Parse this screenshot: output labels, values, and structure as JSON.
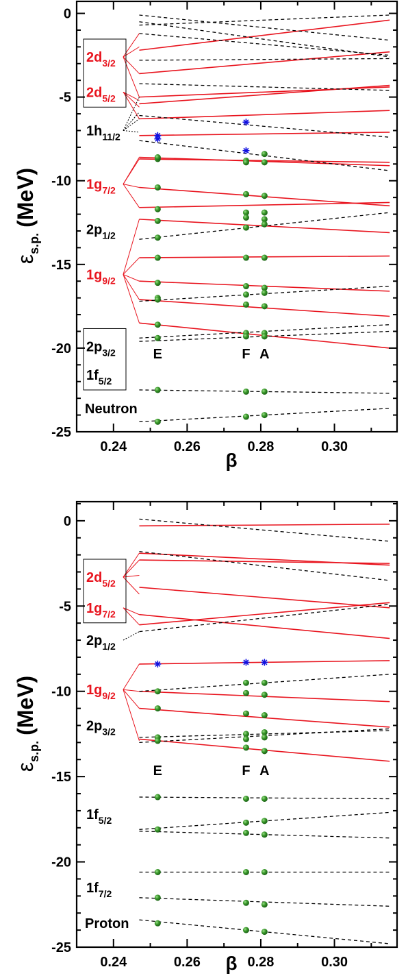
{
  "chart_data": [
    {
      "type": "line",
      "panel": "neutron",
      "title": "",
      "xlabel": "β",
      "ylabel_main": "ε",
      "ylabel_sub": "s.p.",
      "ylabel_unit": "(MeV)",
      "xlim": [
        0.23,
        0.317
      ],
      "ylim": [
        -25,
        0.8
      ],
      "x_ticks": [
        0.24,
        0.26,
        0.28,
        0.3
      ],
      "x_tick_labels": [
        "0.24",
        "0.26",
        "0.28",
        "0.30"
      ],
      "y_ticks": [
        0,
        -5,
        -10,
        -15,
        -20,
        -25
      ],
      "y_tick_labels": [
        "0",
        "-5",
        "-10",
        "-15",
        "-20",
        "-25"
      ],
      "nucleon_label": "Neutron",
      "point_labels": [
        {
          "text": "E",
          "x": 0.252
        },
        {
          "text": "F",
          "x": 0.276
        },
        {
          "text": "A",
          "x": 0.281
        }
      ],
      "point_label_y": -20.3,
      "x_start": 0.247,
      "x_end": 0.315,
      "label_groups": [
        {
          "main": "2d",
          "sub": "3/2",
          "color": "red",
          "boxed": true,
          "y": -2.6,
          "targets": [
            -1.2,
            -2.0,
            -3.6,
            -5.0
          ]
        },
        {
          "main": "2d",
          "sub": "5/2",
          "color": "red",
          "boxed": true,
          "y": -4.7,
          "targets": [
            -5.2,
            -5.6,
            -6.3
          ]
        },
        {
          "main": "1h",
          "sub": "11/2",
          "color": "black",
          "boxed": false,
          "y": -7.0,
          "targets": [
            -5.0,
            -5.9,
            -6.3,
            -7.1
          ]
        },
        {
          "main": "1g",
          "sub": "7/2",
          "color": "red",
          "boxed": false,
          "y": -10.2,
          "targets": [
            -8.7,
            -8.6,
            -10.4,
            -11.6
          ]
        },
        {
          "main": "2p",
          "sub": "1/2",
          "color": "black",
          "boxed": false,
          "y": -12.9,
          "targets": []
        },
        {
          "main": "1g",
          "sub": "9/2",
          "color": "red",
          "boxed": false,
          "y": -15.6,
          "targets": [
            -12.3,
            -14.6,
            -16.0,
            -17.1,
            -18.5
          ]
        },
        {
          "main": "2p",
          "sub": "3/2",
          "color": "black",
          "boxed": true,
          "y": -19.9,
          "targets": []
        },
        {
          "main": "1f",
          "sub": "5/2",
          "color": "black",
          "boxed": true,
          "y": -21.6,
          "targets": []
        }
      ],
      "series": [
        {
          "style": "solid",
          "color": "red",
          "y": [
            -2.2,
            -0.4
          ]
        },
        {
          "style": "solid",
          "color": "red",
          "y": [
            -3.6,
            -2.3
          ]
        },
        {
          "style": "solid",
          "color": "red",
          "y": [
            -5.0,
            -4.4
          ]
        },
        {
          "style": "solid",
          "color": "red",
          "y": [
            -5.4,
            -4.3
          ]
        },
        {
          "style": "solid",
          "color": "red",
          "y": [
            -6.3,
            -5.8
          ]
        },
        {
          "style": "solid",
          "color": "red",
          "y": [
            -7.3,
            -7.1
          ]
        },
        {
          "style": "solid",
          "color": "red",
          "y": [
            -8.6,
            -9.1
          ]
        },
        {
          "style": "solid",
          "color": "red",
          "y": [
            -8.7,
            -8.9
          ]
        },
        {
          "style": "solid",
          "color": "red",
          "y": [
            -10.4,
            -11.5
          ]
        },
        {
          "style": "solid",
          "color": "red",
          "y": [
            -11.6,
            -11.3
          ]
        },
        {
          "style": "solid",
          "color": "red",
          "y": [
            -12.3,
            -13.1
          ]
        },
        {
          "style": "solid",
          "color": "red",
          "y": [
            -14.6,
            -14.5
          ]
        },
        {
          "style": "solid",
          "color": "red",
          "y": [
            -16.0,
            -16.6
          ]
        },
        {
          "style": "solid",
          "color": "red",
          "y": [
            -17.1,
            -18.1
          ]
        },
        {
          "style": "solid",
          "color": "red",
          "y": [
            -18.5,
            -20.0
          ]
        },
        {
          "style": "dashed",
          "color": "black",
          "y": [
            -0.1,
            -1.6
          ]
        },
        {
          "style": "dashed",
          "color": "black",
          "y": [
            -0.5,
            -2.6
          ]
        },
        {
          "style": "dashed",
          "color": "black",
          "y": [
            -0.7,
            -0.1
          ]
        },
        {
          "style": "dashed",
          "color": "black",
          "y": [
            -1.2,
            -2.5
          ]
        },
        {
          "style": "dashed",
          "color": "black",
          "y": [
            -2.8,
            -2.7
          ]
        },
        {
          "style": "dashed",
          "color": "black",
          "y": [
            -4.2,
            -4.6
          ]
        },
        {
          "style": "dashed",
          "color": "black",
          "y": [
            -6.1,
            -7.4
          ]
        },
        {
          "style": "dashed",
          "color": "black",
          "y": [
            -7.6,
            -9.4
          ]
        },
        {
          "style": "dashed",
          "color": "black",
          "y": [
            -13.5,
            -11.9
          ]
        },
        {
          "style": "dashed",
          "color": "black",
          "y": [
            -17.2,
            -16.3
          ]
        },
        {
          "style": "dashed",
          "color": "black",
          "y": [
            -19.4,
            -18.6
          ]
        },
        {
          "style": "dashed",
          "color": "black",
          "y": [
            -19.6,
            -19.0
          ]
        },
        {
          "style": "dashed",
          "color": "black",
          "y": [
            -22.5,
            -22.7
          ]
        },
        {
          "style": "dashed",
          "color": "black",
          "y": [
            -24.4,
            -23.6
          ]
        }
      ],
      "green_points": [
        {
          "x": 0.252,
          "y": [
            -8.7,
            -8.6,
            -10.4,
            -11.7,
            -12.4,
            -13.4,
            -14.6,
            -16.1,
            -17.0,
            -17.1,
            -18.6,
            -19.4,
            -22.5,
            -24.4
          ]
        },
        {
          "x": 0.276,
          "y": [
            -8.8,
            -8.9,
            -10.8,
            -11.9,
            -12.2,
            -12.8,
            -14.6,
            -16.3,
            -16.8,
            -17.4,
            -19.1,
            -19.3,
            -22.6,
            -24.1
          ]
        },
        {
          "x": 0.281,
          "y": [
            -8.4,
            -8.9,
            -10.9,
            -11.9,
            -12.3,
            -12.6,
            -14.6,
            -16.4,
            -16.7,
            -17.5,
            -19.1,
            -19.3,
            -22.6,
            -24.0
          ]
        }
      ],
      "blue_points": [
        {
          "x": 0.252,
          "y": -7.3
        },
        {
          "x": 0.252,
          "y": -7.5
        },
        {
          "x": 0.276,
          "y": -6.5
        },
        {
          "x": 0.276,
          "y": -8.2
        }
      ]
    },
    {
      "type": "line",
      "panel": "proton",
      "title": "",
      "xlabel": "β",
      "ylabel_main": "ε",
      "ylabel_sub": "s.p.",
      "ylabel_unit": "(MeV)",
      "xlim": [
        0.23,
        0.317
      ],
      "ylim": [
        -25,
        1.2
      ],
      "x_ticks": [
        0.24,
        0.26,
        0.28,
        0.3
      ],
      "x_tick_labels": [
        "0.24",
        "0.26",
        "0.28",
        "0.30"
      ],
      "y_ticks": [
        0,
        -5,
        -10,
        -15,
        -20,
        -25
      ],
      "y_tick_labels": [
        "0",
        "-5",
        "-10",
        "-15",
        "-20",
        "-25"
      ],
      "nucleon_label": "Proton",
      "point_labels": [
        {
          "text": "E",
          "x": 0.252
        },
        {
          "text": "F",
          "x": 0.276
        },
        {
          "text": "A",
          "x": 0.281
        }
      ],
      "point_label_y": -14.6,
      "x_start": 0.247,
      "x_end": 0.315,
      "label_groups": [
        {
          "main": "2d",
          "sub": "5/2",
          "color": "red",
          "boxed": true,
          "y": -3.3,
          "targets": [
            -1.9,
            -2.3,
            -3.2,
            -4.3
          ]
        },
        {
          "main": "1g",
          "sub": "7/2",
          "color": "red",
          "boxed": true,
          "y": -5.1,
          "targets": [
            -5.5,
            -6.1
          ]
        },
        {
          "main": "2p",
          "sub": "1/2",
          "color": "black",
          "boxed": false,
          "y": -7.0,
          "targets": [
            -6.5
          ]
        },
        {
          "main": "1g",
          "sub": "9/2",
          "color": "red",
          "boxed": false,
          "y": -9.9,
          "targets": [
            -8.4,
            -10.0,
            -11.0,
            -12.9
          ]
        },
        {
          "main": "2p",
          "sub": "3/2",
          "color": "black",
          "boxed": false,
          "y": -12.0,
          "targets": []
        },
        {
          "main": "1f",
          "sub": "5/2",
          "color": "black",
          "boxed": false,
          "y": -17.2,
          "targets": []
        },
        {
          "main": "1f",
          "sub": "7/2",
          "color": "black",
          "boxed": false,
          "y": -21.5,
          "targets": []
        }
      ],
      "series": [
        {
          "style": "solid",
          "color": "red",
          "y": [
            -0.3,
            -0.2
          ]
        },
        {
          "style": "solid",
          "color": "red",
          "y": [
            -1.9,
            -2.6
          ]
        },
        {
          "style": "solid",
          "color": "red",
          "y": [
            -2.3,
            -2.5
          ]
        },
        {
          "style": "solid",
          "color": "red",
          "y": [
            -3.9,
            -5.1
          ]
        },
        {
          "style": "solid",
          "color": "red",
          "y": [
            -5.5,
            -6.9
          ]
        },
        {
          "style": "solid",
          "color": "red",
          "y": [
            -6.1,
            -4.8
          ]
        },
        {
          "style": "solid",
          "color": "red",
          "y": [
            -8.4,
            -8.2
          ]
        },
        {
          "style": "solid",
          "color": "red",
          "y": [
            -10.0,
            -10.6
          ]
        },
        {
          "style": "solid",
          "color": "red",
          "y": [
            -11.0,
            -12.1
          ]
        },
        {
          "style": "solid",
          "color": "red",
          "y": [
            -12.8,
            -14.1
          ]
        },
        {
          "style": "dashed",
          "color": "black",
          "y": [
            0.1,
            -1.2
          ]
        },
        {
          "style": "dashed",
          "color": "black",
          "y": [
            -1.8,
            -3.5
          ]
        },
        {
          "style": "dashed",
          "color": "black",
          "y": [
            -6.5,
            -4.9
          ]
        },
        {
          "style": "dashed",
          "color": "black",
          "y": [
            -10.0,
            -9.0
          ]
        },
        {
          "style": "dashed",
          "color": "black",
          "y": [
            -12.7,
            -12.3
          ]
        },
        {
          "style": "dashed",
          "color": "black",
          "y": [
            -13.0,
            -12.2
          ]
        },
        {
          "style": "dashed",
          "color": "black",
          "y": [
            -16.2,
            -16.3
          ]
        },
        {
          "style": "dashed",
          "color": "black",
          "y": [
            -18.1,
            -17.1
          ]
        },
        {
          "style": "dashed",
          "color": "black",
          "y": [
            -18.2,
            -18.6
          ]
        },
        {
          "style": "dashed",
          "color": "black",
          "y": [
            -20.6,
            -20.6
          ]
        },
        {
          "style": "dashed",
          "color": "black",
          "y": [
            -22.1,
            -22.6
          ]
        },
        {
          "style": "dashed",
          "color": "black",
          "y": [
            -23.4,
            -24.8
          ]
        }
      ],
      "green_points": [
        {
          "x": 0.252,
          "y": [
            -10.0,
            -11.0,
            -12.7,
            -12.9,
            -16.2,
            -18.1,
            -20.6,
            -22.1,
            -23.6
          ]
        },
        {
          "x": 0.276,
          "y": [
            -9.5,
            -10.1,
            -11.3,
            -12.5,
            -12.8,
            -13.3,
            -16.3,
            -17.7,
            -18.3,
            -20.6,
            -22.4,
            -24.0
          ]
        },
        {
          "x": 0.281,
          "y": [
            -9.5,
            -10.2,
            -11.4,
            -12.4,
            -12.7,
            -13.5,
            -16.3,
            -17.6,
            -18.4,
            -20.6,
            -22.5,
            -24.1
          ]
        }
      ],
      "blue_points": [
        {
          "x": 0.252,
          "y": -8.4
        },
        {
          "x": 0.276,
          "y": -8.3
        },
        {
          "x": 0.281,
          "y": -8.3
        }
      ]
    }
  ]
}
